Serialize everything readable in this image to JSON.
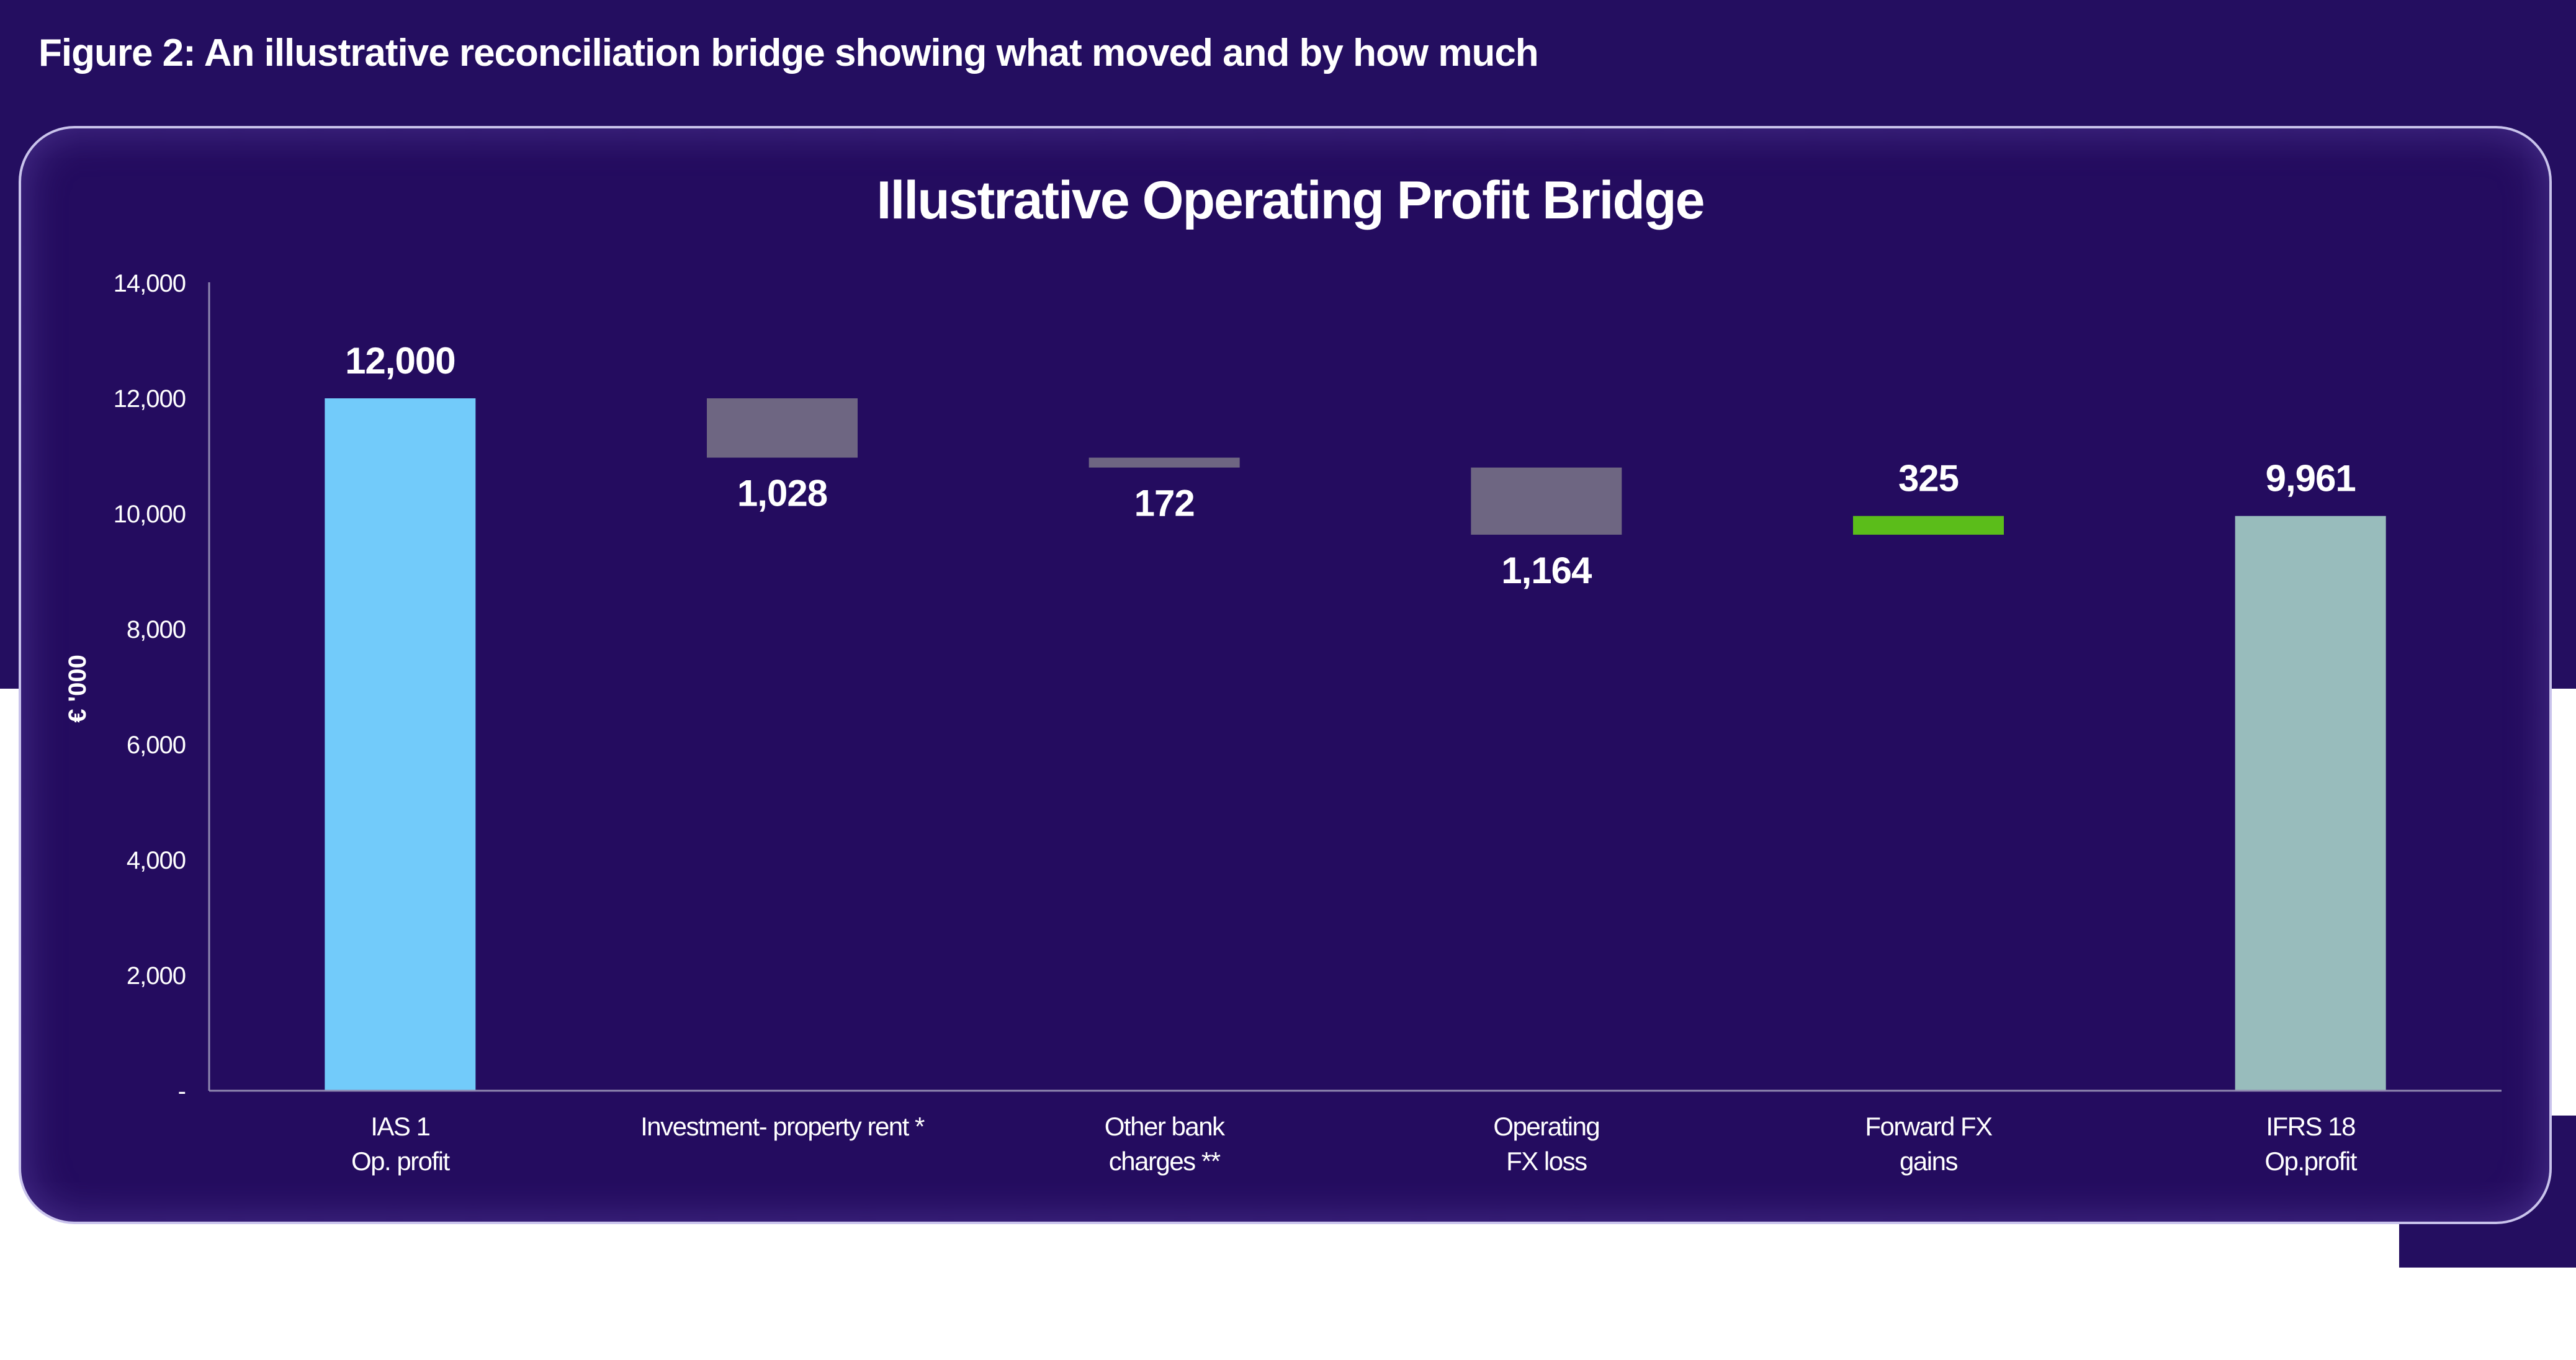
{
  "figure_title": "Figure 2: An illustrative reconciliation bridge showing what moved and by how much",
  "colors": {
    "page_background": "#240e60",
    "panel_background": "#240c5f",
    "start_total": "#72cbfa",
    "decrease": "#6e6682",
    "increase": "#5bbd1a",
    "end_total": "#98bcbc",
    "text": "#ffffff"
  },
  "chart_data": {
    "type": "bar",
    "subtype": "waterfall",
    "title": "Illustrative Operating Profit Bridge",
    "ylabel": "€ '000",
    "xlabel": "",
    "ylim": [
      0,
      14000
    ],
    "yticks": [
      0,
      2000,
      4000,
      6000,
      8000,
      10000,
      12000,
      14000
    ],
    "ytick_labels": [
      "-",
      "2,000",
      "4,000",
      "6,000",
      "8,000",
      "10,000",
      "12,000",
      "14,000"
    ],
    "grid": false,
    "legend": "none",
    "bars": [
      {
        "category": [
          "IAS 1",
          "Op. profit"
        ],
        "kind": "total",
        "start": 0,
        "end": 12000,
        "label": "12,000"
      },
      {
        "category": [
          "Investment- property rent *"
        ],
        "kind": "decrease",
        "start": 12000,
        "end": 10972,
        "label": "1,028"
      },
      {
        "category": [
          "Other bank",
          "charges **"
        ],
        "kind": "decrease",
        "start": 10972,
        "end": 10800,
        "label": "172"
      },
      {
        "category": [
          "Operating",
          "FX loss"
        ],
        "kind": "decrease",
        "start": 10800,
        "end": 9636,
        "label": "1,164"
      },
      {
        "category": [
          "Forward FX",
          "gains"
        ],
        "kind": "increase",
        "start": 9636,
        "end": 9961,
        "label": "325"
      },
      {
        "category": [
          "IFRS 18",
          "Op.profit"
        ],
        "kind": "total",
        "start": 0,
        "end": 9961,
        "label": "9,961"
      }
    ]
  }
}
